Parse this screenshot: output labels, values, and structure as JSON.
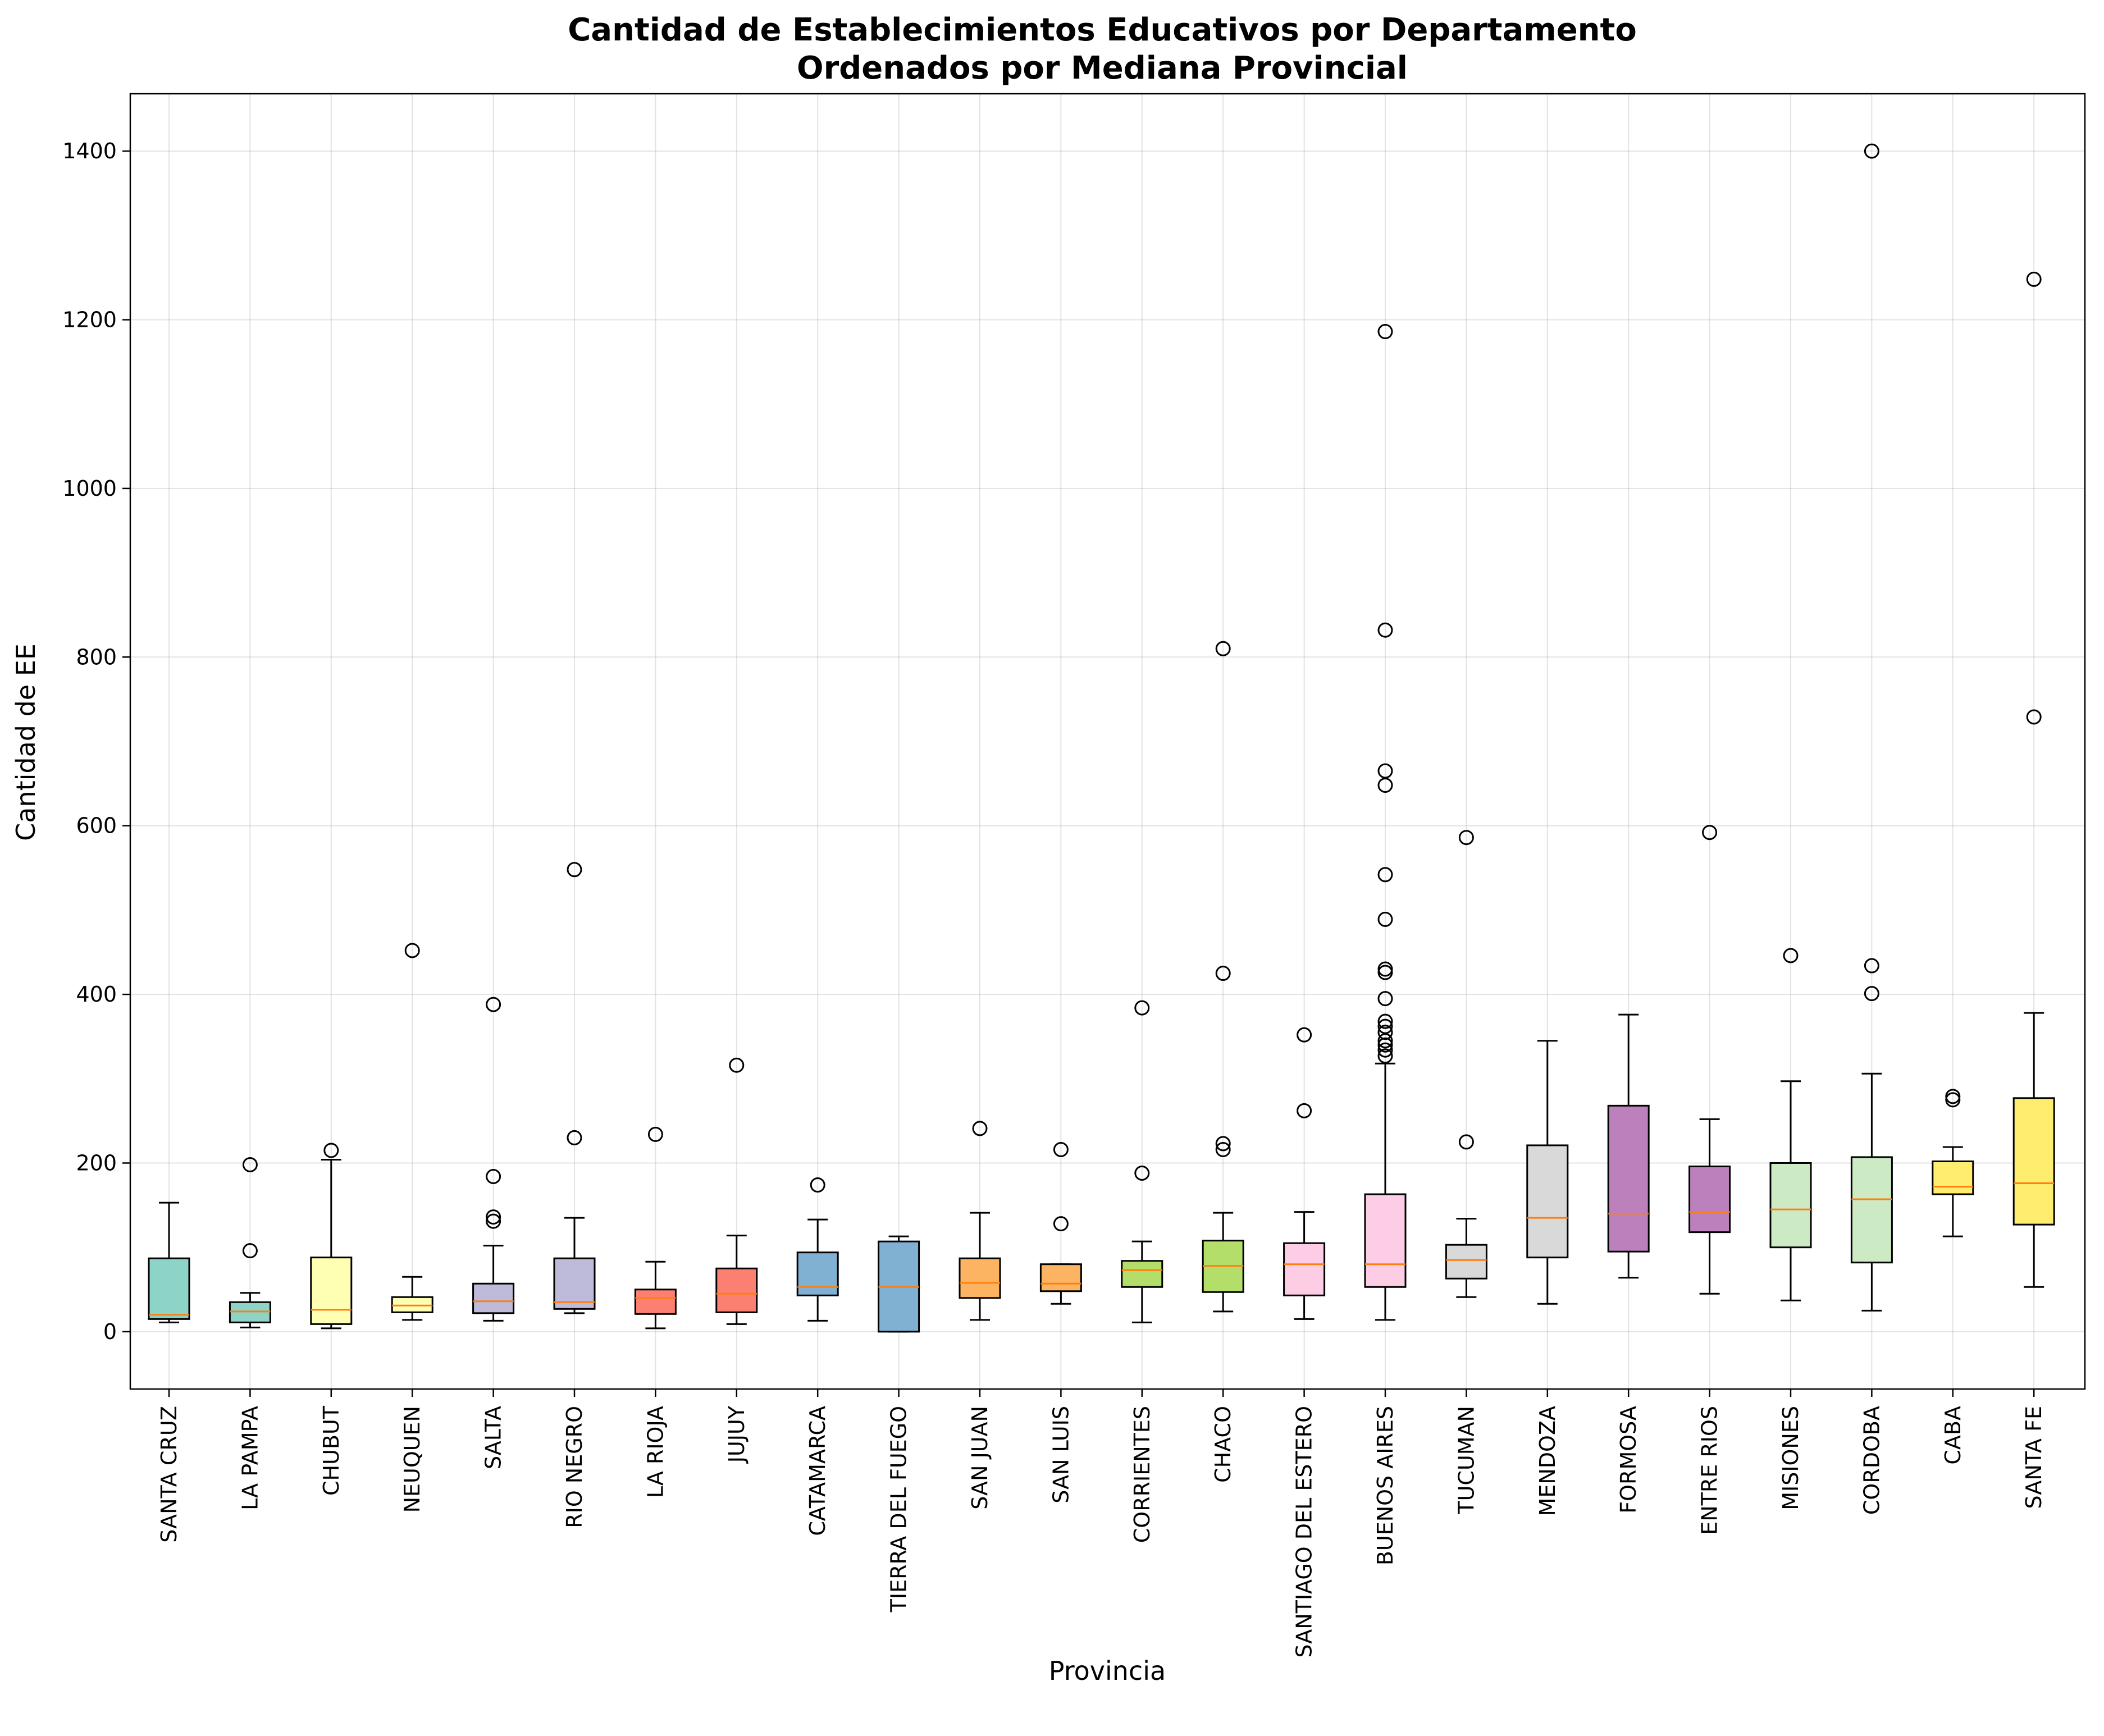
{
  "chart_data": {
    "type": "box",
    "title": "Cantidad de Establecimientos Educativos por Departamento",
    "subtitle": "Ordenados por Mediana Provincial",
    "xlabel": "Provincia",
    "ylabel": "Cantidad de EE",
    "ylim": [
      -68,
      1468
    ],
    "yticks": [
      0,
      200,
      400,
      600,
      800,
      1000,
      1200,
      1400
    ],
    "grid": true,
    "median_color": "#ff7f0e",
    "box_edge_color": "#000000",
    "series": [
      {
        "name": "SANTA CRUZ",
        "color": "#8dd3c7",
        "whisker_low": 11,
        "q1": 15,
        "median": 20,
        "q3": 87,
        "whisker_high": 153,
        "outliers": []
      },
      {
        "name": "LA PAMPA",
        "color": "#8dd3c7",
        "whisker_low": 5,
        "q1": 11,
        "median": 24,
        "q3": 35,
        "whisker_high": 46,
        "outliers": [
          96,
          198
        ]
      },
      {
        "name": "CHUBUT",
        "color": "#ffffb3",
        "whisker_low": 4,
        "q1": 9,
        "median": 26,
        "q3": 88,
        "whisker_high": 204,
        "outliers": [
          215
        ]
      },
      {
        "name": "NEUQUEN",
        "color": "#ffffb3",
        "whisker_low": 14,
        "q1": 23,
        "median": 31,
        "q3": 41,
        "whisker_high": 65,
        "outliers": [
          452
        ]
      },
      {
        "name": "SALTA",
        "color": "#bebada",
        "whisker_low": 13,
        "q1": 22,
        "median": 36,
        "q3": 57,
        "whisker_high": 102,
        "outliers": [
          131,
          136,
          184,
          388
        ]
      },
      {
        "name": "RIO NEGRO",
        "color": "#bebada",
        "whisker_low": 22,
        "q1": 27,
        "median": 35,
        "q3": 87,
        "whisker_high": 135,
        "outliers": [
          230,
          548
        ]
      },
      {
        "name": "LA RIOJA",
        "color": "#fb8072",
        "whisker_low": 4,
        "q1": 21,
        "median": 40,
        "q3": 50,
        "whisker_high": 83,
        "outliers": [
          234
        ]
      },
      {
        "name": "JUJUY",
        "color": "#fb8072",
        "whisker_low": 9,
        "q1": 23,
        "median": 45,
        "q3": 75,
        "whisker_high": 114,
        "outliers": [
          316
        ]
      },
      {
        "name": "CATAMARCA",
        "color": "#80b1d3",
        "whisker_low": 13,
        "q1": 43,
        "median": 53,
        "q3": 94,
        "whisker_high": 133,
        "outliers": [
          174
        ]
      },
      {
        "name": "TIERRA DEL FUEGO",
        "color": "#80b1d3",
        "whisker_low": 0,
        "q1": 0,
        "median": 53,
        "q3": 107,
        "whisker_high": 113,
        "outliers": []
      },
      {
        "name": "SAN JUAN",
        "color": "#fdb462",
        "whisker_low": 14,
        "q1": 40,
        "median": 58,
        "q3": 87,
        "whisker_high": 141,
        "outliers": [
          241
        ]
      },
      {
        "name": "SAN LUIS",
        "color": "#fdb462",
        "whisker_low": 33,
        "q1": 48,
        "median": 57,
        "q3": 80,
        "whisker_high": 80,
        "outliers": [
          128,
          216
        ]
      },
      {
        "name": "CORRIENTES",
        "color": "#b3de69",
        "whisker_low": 11,
        "q1": 53,
        "median": 73,
        "q3": 84,
        "whisker_high": 107,
        "outliers": [
          188,
          384
        ]
      },
      {
        "name": "CHACO",
        "color": "#b3de69",
        "whisker_low": 24,
        "q1": 47,
        "median": 78,
        "q3": 108,
        "whisker_high": 141,
        "outliers": [
          216,
          223,
          425,
          810
        ]
      },
      {
        "name": "SANTIAGO DEL ESTERO",
        "color": "#fccde5",
        "whisker_low": 15,
        "q1": 43,
        "median": 80,
        "q3": 105,
        "whisker_high": 142,
        "outliers": [
          262,
          352
        ]
      },
      {
        "name": "BUENOS AIRES",
        "color": "#fccde5",
        "whisker_low": 14,
        "q1": 53,
        "median": 80,
        "q3": 163,
        "whisker_high": 318,
        "outliers": [
          327,
          334,
          340,
          345,
          355,
          362,
          368,
          395,
          426,
          430,
          489,
          542,
          648,
          665,
          832,
          1186
        ]
      },
      {
        "name": "TUCUMAN",
        "color": "#d9d9d9",
        "whisker_low": 41,
        "q1": 63,
        "median": 85,
        "q3": 103,
        "whisker_high": 134,
        "outliers": [
          225,
          586
        ]
      },
      {
        "name": "MENDOZA",
        "color": "#d9d9d9",
        "whisker_low": 33,
        "q1": 88,
        "median": 135,
        "q3": 221,
        "whisker_high": 345,
        "outliers": []
      },
      {
        "name": "FORMOSA",
        "color": "#bc80bd",
        "whisker_low": 64,
        "q1": 95,
        "median": 140,
        "q3": 268,
        "whisker_high": 376,
        "outliers": []
      },
      {
        "name": "ENTRE RIOS",
        "color": "#bc80bd",
        "whisker_low": 45,
        "q1": 118,
        "median": 142,
        "q3": 196,
        "whisker_high": 252,
        "outliers": [
          592
        ]
      },
      {
        "name": "MISIONES",
        "color": "#ccebc5",
        "whisker_low": 37,
        "q1": 100,
        "median": 145,
        "q3": 200,
        "whisker_high": 297,
        "outliers": [
          446
        ]
      },
      {
        "name": "CORDOBA",
        "color": "#ccebc5",
        "whisker_low": 25,
        "q1": 82,
        "median": 157,
        "q3": 207,
        "whisker_high": 306,
        "outliers": [
          401,
          434,
          1400
        ]
      },
      {
        "name": "CABA",
        "color": "#ffed6f",
        "whisker_low": 113,
        "q1": 163,
        "median": 172,
        "q3": 202,
        "whisker_high": 219,
        "outliers": [
          275,
          279
        ]
      },
      {
        "name": "SANTA FE",
        "color": "#ffed6f",
        "whisker_low": 53,
        "q1": 127,
        "median": 176,
        "q3": 277,
        "whisker_high": 378,
        "outliers": [
          729,
          1248
        ]
      }
    ]
  }
}
